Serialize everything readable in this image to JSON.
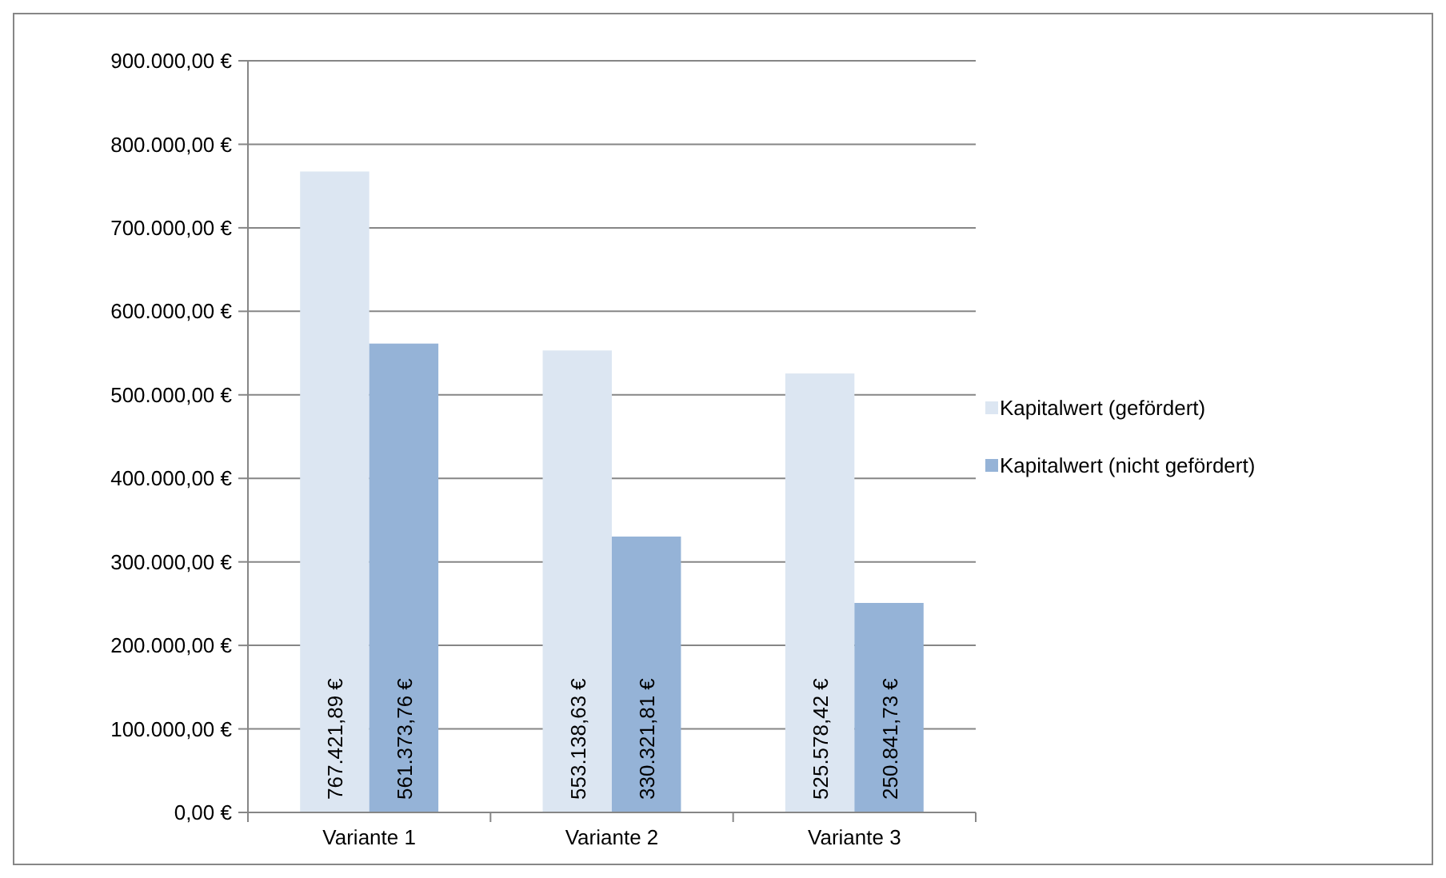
{
  "chart_data": {
    "type": "bar",
    "categories": [
      "Variante 1",
      "Variante 2",
      "Variante 3"
    ],
    "series": [
      {
        "name": "Kapitalwert (gefördert)",
        "color": "#dce6f2",
        "values": [
          767421.89,
          553138.63,
          525578.42
        ],
        "value_labels": [
          "767.421,89 €",
          "553.138,63 €",
          "525.578,42 €"
        ]
      },
      {
        "name": "Kapitalwert (nicht gefördert)",
        "color": "#95b3d7",
        "values": [
          561373.76,
          330321.81,
          250841.73
        ],
        "value_labels": [
          "561.373,76 €",
          "330.321,81 €",
          "250.841,73 €"
        ]
      }
    ],
    "ylim": [
      0,
      900000
    ],
    "yticks": [
      {
        "value": 0,
        "label": "0,00 €"
      },
      {
        "value": 100000,
        "label": "100.000,00 €"
      },
      {
        "value": 200000,
        "label": "200.000,00 €"
      },
      {
        "value": 300000,
        "label": "300.000,00 €"
      },
      {
        "value": 400000,
        "label": "400.000,00 €"
      },
      {
        "value": 500000,
        "label": "500.000,00 €"
      },
      {
        "value": 600000,
        "label": "600.000,00 €"
      },
      {
        "value": 700000,
        "label": "700.000,00 €"
      },
      {
        "value": 800000,
        "label": "800.000,00 €"
      },
      {
        "value": 900000,
        "label": "900.000,00 €"
      }
    ],
    "grid": "y",
    "legend": "right"
  }
}
